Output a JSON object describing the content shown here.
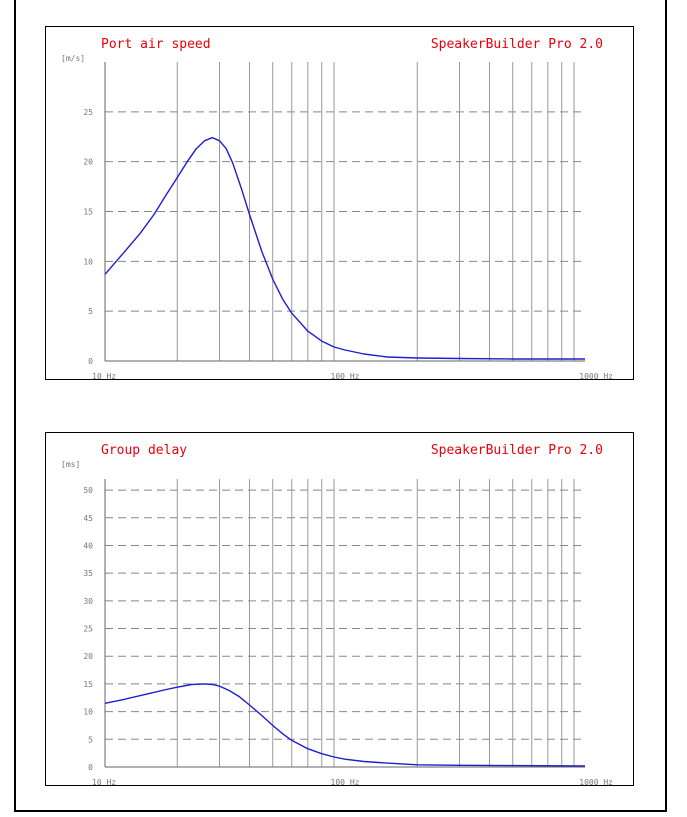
{
  "chart_data": [
    {
      "type": "line",
      "title": "Port air speed",
      "brand": "SpeakerBuilder Pro 2.0",
      "ylabel": "[m/s]",
      "xscale": "log",
      "xlim": [
        10,
        1000
      ],
      "ylim": [
        0,
        30
      ],
      "yticks": [
        0,
        5,
        10,
        15,
        20,
        25
      ],
      "xticks": [
        {
          "value": 10,
          "label": "10 Hz"
        },
        {
          "value": 100,
          "label": "100 Hz"
        },
        {
          "value": 1000,
          "label": "1000 Hz"
        }
      ],
      "grid": true,
      "line_color": "#1f1fcc",
      "x": [
        10,
        12,
        14,
        16,
        18,
        20,
        22,
        24,
        26,
        28,
        30,
        32,
        34,
        37,
        40,
        45,
        50,
        55,
        60,
        70,
        80,
        90,
        100,
        120,
        150,
        200,
        300,
        500,
        1000
      ],
      "y": [
        8.7,
        10.9,
        12.8,
        14.7,
        16.7,
        18.4,
        20.0,
        21.3,
        22.1,
        22.4,
        22.1,
        21.3,
        19.9,
        17.3,
        14.7,
        11.0,
        8.2,
        6.2,
        4.8,
        3.0,
        2.0,
        1.4,
        1.1,
        0.7,
        0.4,
        0.3,
        0.25,
        0.2,
        0.2
      ]
    },
    {
      "type": "line",
      "title": "Group delay",
      "brand": "SpeakerBuilder Pro 2.0",
      "ylabel": "[ms]",
      "xscale": "log",
      "xlim": [
        10,
        1000
      ],
      "ylim": [
        0,
        52
      ],
      "yticks": [
        0,
        5,
        10,
        15,
        20,
        25,
        30,
        35,
        40,
        45,
        50
      ],
      "xticks": [
        {
          "value": 10,
          "label": "10 Hz"
        },
        {
          "value": 100,
          "label": "100 Hz"
        },
        {
          "value": 1000,
          "label": "1000 Hz"
        }
      ],
      "grid": true,
      "line_color": "#1f1fcc",
      "x": [
        10,
        12,
        15,
        18,
        20,
        23,
        26,
        28,
        30,
        33,
        36,
        40,
        45,
        50,
        55,
        60,
        70,
        80,
        90,
        100,
        120,
        150,
        200,
        300,
        500,
        1000
      ],
      "y": [
        11.5,
        12.2,
        13.2,
        14.0,
        14.4,
        14.9,
        15.0,
        14.9,
        14.6,
        13.8,
        12.8,
        11.2,
        9.3,
        7.5,
        6.0,
        4.8,
        3.3,
        2.4,
        1.8,
        1.4,
        1.0,
        0.7,
        0.4,
        0.3,
        0.25,
        0.2
      ]
    }
  ]
}
